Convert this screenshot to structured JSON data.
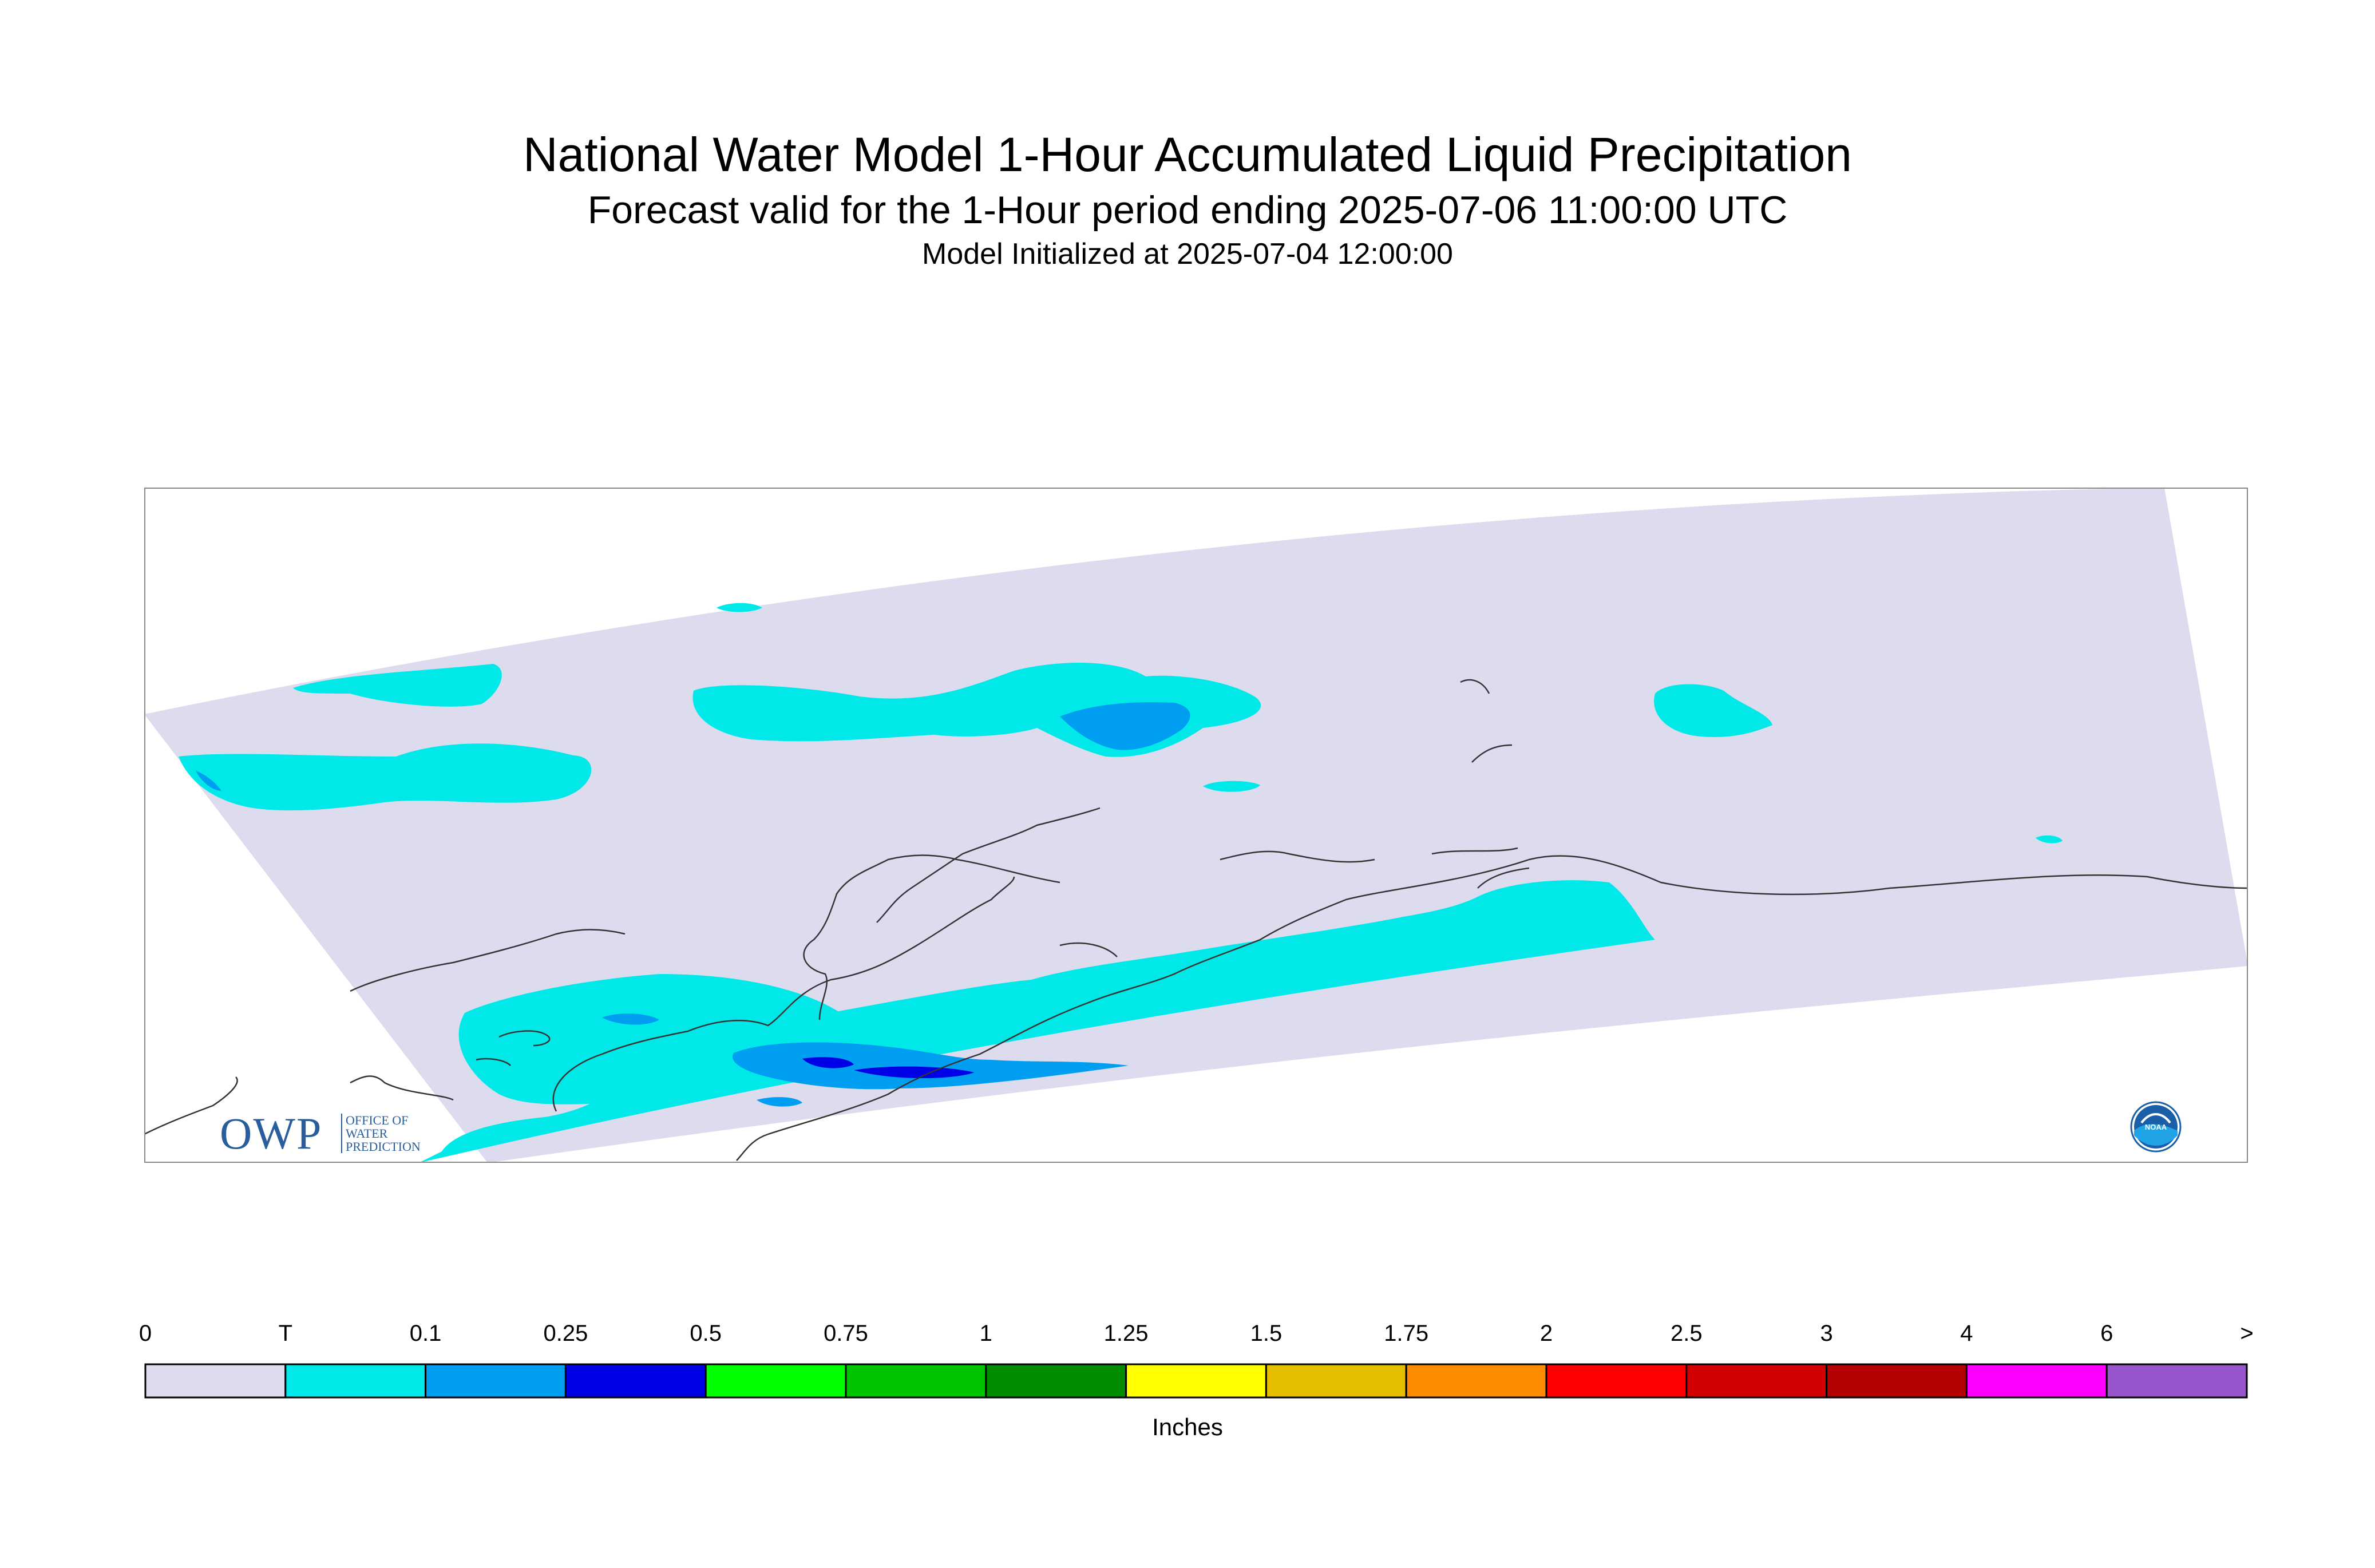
{
  "title": "National Water Model 1-Hour Accumulated Liquid Precipitation",
  "subtitle": "Forecast valid for the 1-Hour period ending 2025-07-06 11:00:00 UTC",
  "init_line": "Model Initialized at 2025-07-04 12:00:00",
  "colors": {
    "domain_fill": "#dcdcee",
    "trace": "#00e8e8",
    "tenth": "#009ef0",
    "quarter": "#0000e6",
    "coast": "#333333",
    "frame": "#888888"
  },
  "logos": {
    "owp": "OWP",
    "owp_sub": [
      "OFFICE OF",
      "WATER",
      "PREDICTION"
    ],
    "noaa": "NOAA"
  },
  "legend": {
    "units": "Inches",
    "labels": [
      "0",
      "T",
      "0.1",
      "0.25",
      "0.5",
      "0.75",
      "1",
      "1.25",
      "1.5",
      "1.75",
      "2",
      "2.5",
      "3",
      "4",
      "6",
      ">"
    ],
    "colors": [
      "#dcdcee",
      "#00e8e8",
      "#009ef0",
      "#0000e6",
      "#00ff00",
      "#00c400",
      "#008c00",
      "#ffff00",
      "#e6be00",
      "#ff8c00",
      "#ff0000",
      "#d20000",
      "#b40000",
      "#ff00ff",
      "#9955cc"
    ]
  }
}
